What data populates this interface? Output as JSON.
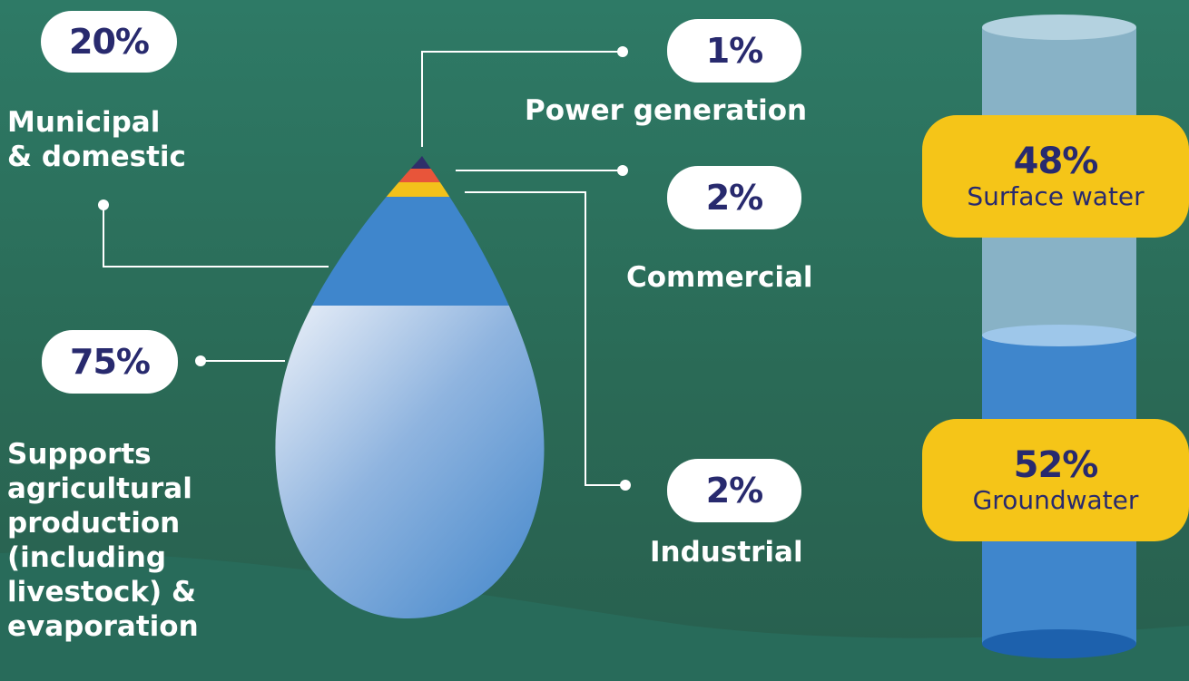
{
  "usage": {
    "municipal": {
      "pct": "20%",
      "label_line1": "Municipal",
      "label_line2": "& domestic"
    },
    "power": {
      "pct": "1%",
      "label": "Power generation"
    },
    "commercial": {
      "pct": "2%",
      "label": "Commercial"
    },
    "industrial": {
      "pct": "2%",
      "label": "Industrial"
    },
    "agriculture": {
      "pct": "75%",
      "label_lines": [
        "Supports",
        "agricultural",
        "production",
        "(including",
        "livestock) &",
        "evaporation"
      ]
    }
  },
  "sources": {
    "surface": {
      "pct": "48%",
      "label": "Surface water",
      "share": 0.48
    },
    "ground": {
      "pct": "52%",
      "label": "Groundwater",
      "share": 0.52
    }
  },
  "colors": {
    "pill_text": "#282a6e",
    "yellow": "#f5c518",
    "drop_blue": "#3f86cc",
    "power_band": "#2f2f6a",
    "commercial_band": "#e8553a",
    "industrial_band": "#f3c11b"
  }
}
